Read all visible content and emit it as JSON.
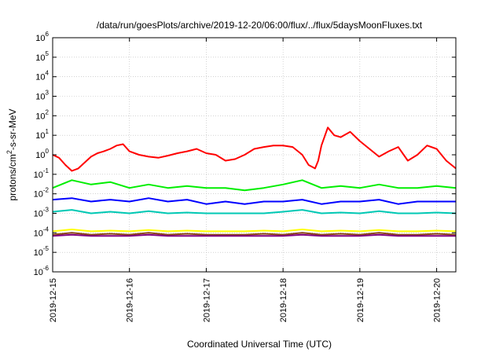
{
  "chart_data": {
    "type": "line",
    "title": "/data/run/goesPlots/archive/2019-12-20/06:00/flux/../flux/5daysMoonFluxes.txt",
    "xlabel": "Coordinated Universal Time (UTC)",
    "ylabel": {
      "base": "protons/cm",
      "sup": "2",
      "rest": "-s-sr-MeV"
    },
    "yscale": "log",
    "ylim": [
      1e-06,
      1000000.0
    ],
    "yticks": [
      {
        "value": 1e-06,
        "base": "10",
        "exp": "-6"
      },
      {
        "value": 1e-05,
        "base": "10",
        "exp": "-5"
      },
      {
        "value": 0.0001,
        "base": "10",
        "exp": "-4"
      },
      {
        "value": 0.001,
        "base": "10",
        "exp": "-3"
      },
      {
        "value": 0.01,
        "base": "10",
        "exp": "-2"
      },
      {
        "value": 0.1,
        "base": "10",
        "exp": "-1"
      },
      {
        "value": 1.0,
        "base": "10",
        "exp": "0"
      },
      {
        "value": 10.0,
        "base": "10",
        "exp": "1"
      },
      {
        "value": 100.0,
        "base": "10",
        "exp": "2"
      },
      {
        "value": 1000.0,
        "base": "10",
        "exp": "3"
      },
      {
        "value": 10000.0,
        "base": "10",
        "exp": "4"
      },
      {
        "value": 100000.0,
        "base": "10",
        "exp": "5"
      },
      {
        "value": 1000000.0,
        "base": "10",
        "exp": "6"
      }
    ],
    "xlim": [
      "2019-12-15T00:00",
      "2019-12-20T06:00"
    ],
    "xticks": [
      "2019-12-15",
      "2019-12-16",
      "2019-12-17",
      "2019-12-18",
      "2019-12-19",
      "2019-12-20"
    ],
    "grid": true,
    "series": [
      {
        "color": "#ff0000",
        "x": [
          "2019-12-15T00:00",
          "2019-12-15T02:00",
          "2019-12-15T04:00",
          "2019-12-15T06:00",
          "2019-12-15T08:00",
          "2019-12-15T10:00",
          "2019-12-15T12:00",
          "2019-12-15T14:00",
          "2019-12-15T16:00",
          "2019-12-15T18:00",
          "2019-12-15T20:00",
          "2019-12-15T22:00",
          "2019-12-16T00:00",
          "2019-12-16T03:00",
          "2019-12-16T06:00",
          "2019-12-16T09:00",
          "2019-12-16T12:00",
          "2019-12-16T15:00",
          "2019-12-16T18:00",
          "2019-12-16T21:00",
          "2019-12-17T00:00",
          "2019-12-17T03:00",
          "2019-12-17T06:00",
          "2019-12-17T09:00",
          "2019-12-17T12:00",
          "2019-12-17T15:00",
          "2019-12-17T18:00",
          "2019-12-17T21:00",
          "2019-12-18T00:00",
          "2019-12-18T03:00",
          "2019-12-18T06:00",
          "2019-12-18T08:00",
          "2019-12-18T10:00",
          "2019-12-18T11:00",
          "2019-12-18T12:00",
          "2019-12-18T14:00",
          "2019-12-18T16:00",
          "2019-12-18T18:00",
          "2019-12-18T21:00",
          "2019-12-19T00:00",
          "2019-12-19T03:00",
          "2019-12-19T06:00",
          "2019-12-19T09:00",
          "2019-12-19T12:00",
          "2019-12-19T15:00",
          "2019-12-19T18:00",
          "2019-12-19T21:00",
          "2019-12-20T00:00",
          "2019-12-20T03:00",
          "2019-12-20T06:00"
        ],
        "values": [
          1.0,
          0.7,
          0.3,
          0.15,
          0.2,
          0.4,
          0.8,
          1.2,
          1.5,
          2.0,
          3.0,
          3.5,
          1.5,
          1.0,
          0.8,
          0.7,
          0.9,
          1.2,
          1.5,
          2.0,
          1.2,
          1.0,
          0.5,
          0.6,
          1.0,
          2.0,
          2.5,
          3.0,
          3.0,
          2.5,
          1.0,
          0.3,
          0.2,
          0.5,
          3.0,
          25,
          10,
          8,
          15,
          5,
          2,
          0.8,
          1.5,
          2.5,
          0.5,
          1.0,
          3.0,
          2.0,
          0.5,
          0.2
        ]
      },
      {
        "color": "#00ee00",
        "x": [
          "2019-12-15T00:00",
          "2019-12-15T06:00",
          "2019-12-15T12:00",
          "2019-12-15T18:00",
          "2019-12-16T00:00",
          "2019-12-16T06:00",
          "2019-12-16T12:00",
          "2019-12-16T18:00",
          "2019-12-17T00:00",
          "2019-12-17T06:00",
          "2019-12-17T12:00",
          "2019-12-17T18:00",
          "2019-12-18T00:00",
          "2019-12-18T06:00",
          "2019-12-18T12:00",
          "2019-12-18T18:00",
          "2019-12-19T00:00",
          "2019-12-19T06:00",
          "2019-12-19T12:00",
          "2019-12-19T18:00",
          "2019-12-20T00:00",
          "2019-12-20T06:00"
        ],
        "values": [
          0.02,
          0.05,
          0.03,
          0.04,
          0.02,
          0.03,
          0.02,
          0.025,
          0.02,
          0.02,
          0.015,
          0.02,
          0.03,
          0.05,
          0.02,
          0.025,
          0.02,
          0.03,
          0.02,
          0.02,
          0.025,
          0.02
        ]
      },
      {
        "color": "#0000ff",
        "x": [
          "2019-12-15T00:00",
          "2019-12-15T06:00",
          "2019-12-15T12:00",
          "2019-12-15T18:00",
          "2019-12-16T00:00",
          "2019-12-16T06:00",
          "2019-12-16T12:00",
          "2019-12-16T18:00",
          "2019-12-17T00:00",
          "2019-12-17T06:00",
          "2019-12-17T12:00",
          "2019-12-17T18:00",
          "2019-12-18T00:00",
          "2019-12-18T06:00",
          "2019-12-18T12:00",
          "2019-12-18T18:00",
          "2019-12-19T00:00",
          "2019-12-19T06:00",
          "2019-12-19T12:00",
          "2019-12-19T18:00",
          "2019-12-20T00:00",
          "2019-12-20T06:00"
        ],
        "values": [
          0.005,
          0.006,
          0.004,
          0.005,
          0.004,
          0.006,
          0.004,
          0.005,
          0.003,
          0.004,
          0.003,
          0.004,
          0.004,
          0.005,
          0.003,
          0.004,
          0.004,
          0.005,
          0.003,
          0.004,
          0.004,
          0.004
        ]
      },
      {
        "color": "#00c8b4",
        "x": [
          "2019-12-15T00:00",
          "2019-12-15T06:00",
          "2019-12-15T12:00",
          "2019-12-15T18:00",
          "2019-12-16T00:00",
          "2019-12-16T06:00",
          "2019-12-16T12:00",
          "2019-12-16T18:00",
          "2019-12-17T00:00",
          "2019-12-17T06:00",
          "2019-12-17T12:00",
          "2019-12-17T18:00",
          "2019-12-18T00:00",
          "2019-12-18T06:00",
          "2019-12-18T12:00",
          "2019-12-18T18:00",
          "2019-12-19T00:00",
          "2019-12-19T06:00",
          "2019-12-19T12:00",
          "2019-12-19T18:00",
          "2019-12-20T00:00",
          "2019-12-20T06:00"
        ],
        "values": [
          0.0012,
          0.0015,
          0.001,
          0.0012,
          0.001,
          0.0013,
          0.001,
          0.0011,
          0.001,
          0.001,
          0.001,
          0.001,
          0.0012,
          0.0015,
          0.001,
          0.0011,
          0.001,
          0.0013,
          0.001,
          0.001,
          0.0011,
          0.001
        ]
      },
      {
        "color": "#ffff00",
        "x": [
          "2019-12-15T00:00",
          "2019-12-15T06:00",
          "2019-12-15T12:00",
          "2019-12-15T18:00",
          "2019-12-16T00:00",
          "2019-12-16T06:00",
          "2019-12-16T12:00",
          "2019-12-16T18:00",
          "2019-12-17T00:00",
          "2019-12-17T06:00",
          "2019-12-17T12:00",
          "2019-12-17T18:00",
          "2019-12-18T00:00",
          "2019-12-18T06:00",
          "2019-12-18T12:00",
          "2019-12-18T18:00",
          "2019-12-19T00:00",
          "2019-12-19T06:00",
          "2019-12-19T12:00",
          "2019-12-19T18:00",
          "2019-12-20T00:00",
          "2019-12-20T06:00"
        ],
        "values": [
          0.00012,
          0.00015,
          0.00012,
          0.00013,
          0.00012,
          0.00014,
          0.00012,
          0.00013,
          0.00012,
          0.00012,
          0.00012,
          0.00013,
          0.00012,
          0.00015,
          0.00012,
          0.00013,
          0.00012,
          0.00014,
          0.00012,
          0.00012,
          0.00013,
          0.00012
        ]
      },
      {
        "color": "#8b4513",
        "x": [
          "2019-12-15T00:00",
          "2019-12-15T06:00",
          "2019-12-15T12:00",
          "2019-12-15T18:00",
          "2019-12-16T00:00",
          "2019-12-16T06:00",
          "2019-12-16T12:00",
          "2019-12-16T18:00",
          "2019-12-17T00:00",
          "2019-12-17T06:00",
          "2019-12-17T12:00",
          "2019-12-17T18:00",
          "2019-12-18T00:00",
          "2019-12-18T06:00",
          "2019-12-18T12:00",
          "2019-12-18T18:00",
          "2019-12-19T00:00",
          "2019-12-19T06:00",
          "2019-12-19T12:00",
          "2019-12-19T18:00",
          "2019-12-20T00:00",
          "2019-12-20T06:00"
        ],
        "values": [
          8e-05,
          0.0001,
          8e-05,
          9e-05,
          8e-05,
          0.0001,
          8e-05,
          9e-05,
          8e-05,
          8e-05,
          8e-05,
          9e-05,
          8e-05,
          0.0001,
          8e-05,
          9e-05,
          8e-05,
          0.0001,
          8e-05,
          8e-05,
          9e-05,
          8e-05
        ]
      },
      {
        "color": "#800080",
        "x": [
          "2019-12-15T00:00",
          "2019-12-15T06:00",
          "2019-12-15T12:00",
          "2019-12-15T18:00",
          "2019-12-16T00:00",
          "2019-12-16T06:00",
          "2019-12-16T12:00",
          "2019-12-16T18:00",
          "2019-12-17T00:00",
          "2019-12-17T06:00",
          "2019-12-17T12:00",
          "2019-12-17T18:00",
          "2019-12-18T00:00",
          "2019-12-18T06:00",
          "2019-12-18T12:00",
          "2019-12-18T18:00",
          "2019-12-19T00:00",
          "2019-12-19T06:00",
          "2019-12-19T12:00",
          "2019-12-19T18:00",
          "2019-12-20T00:00",
          "2019-12-20T06:00"
        ],
        "values": [
          7e-05,
          8e-05,
          7e-05,
          7e-05,
          7e-05,
          8e-05,
          7e-05,
          7e-05,
          7e-05,
          7e-05,
          7e-05,
          7e-05,
          7e-05,
          8e-05,
          7e-05,
          7e-05,
          7e-05,
          8e-05,
          7e-05,
          7e-05,
          7e-05,
          7e-05
        ]
      }
    ]
  }
}
